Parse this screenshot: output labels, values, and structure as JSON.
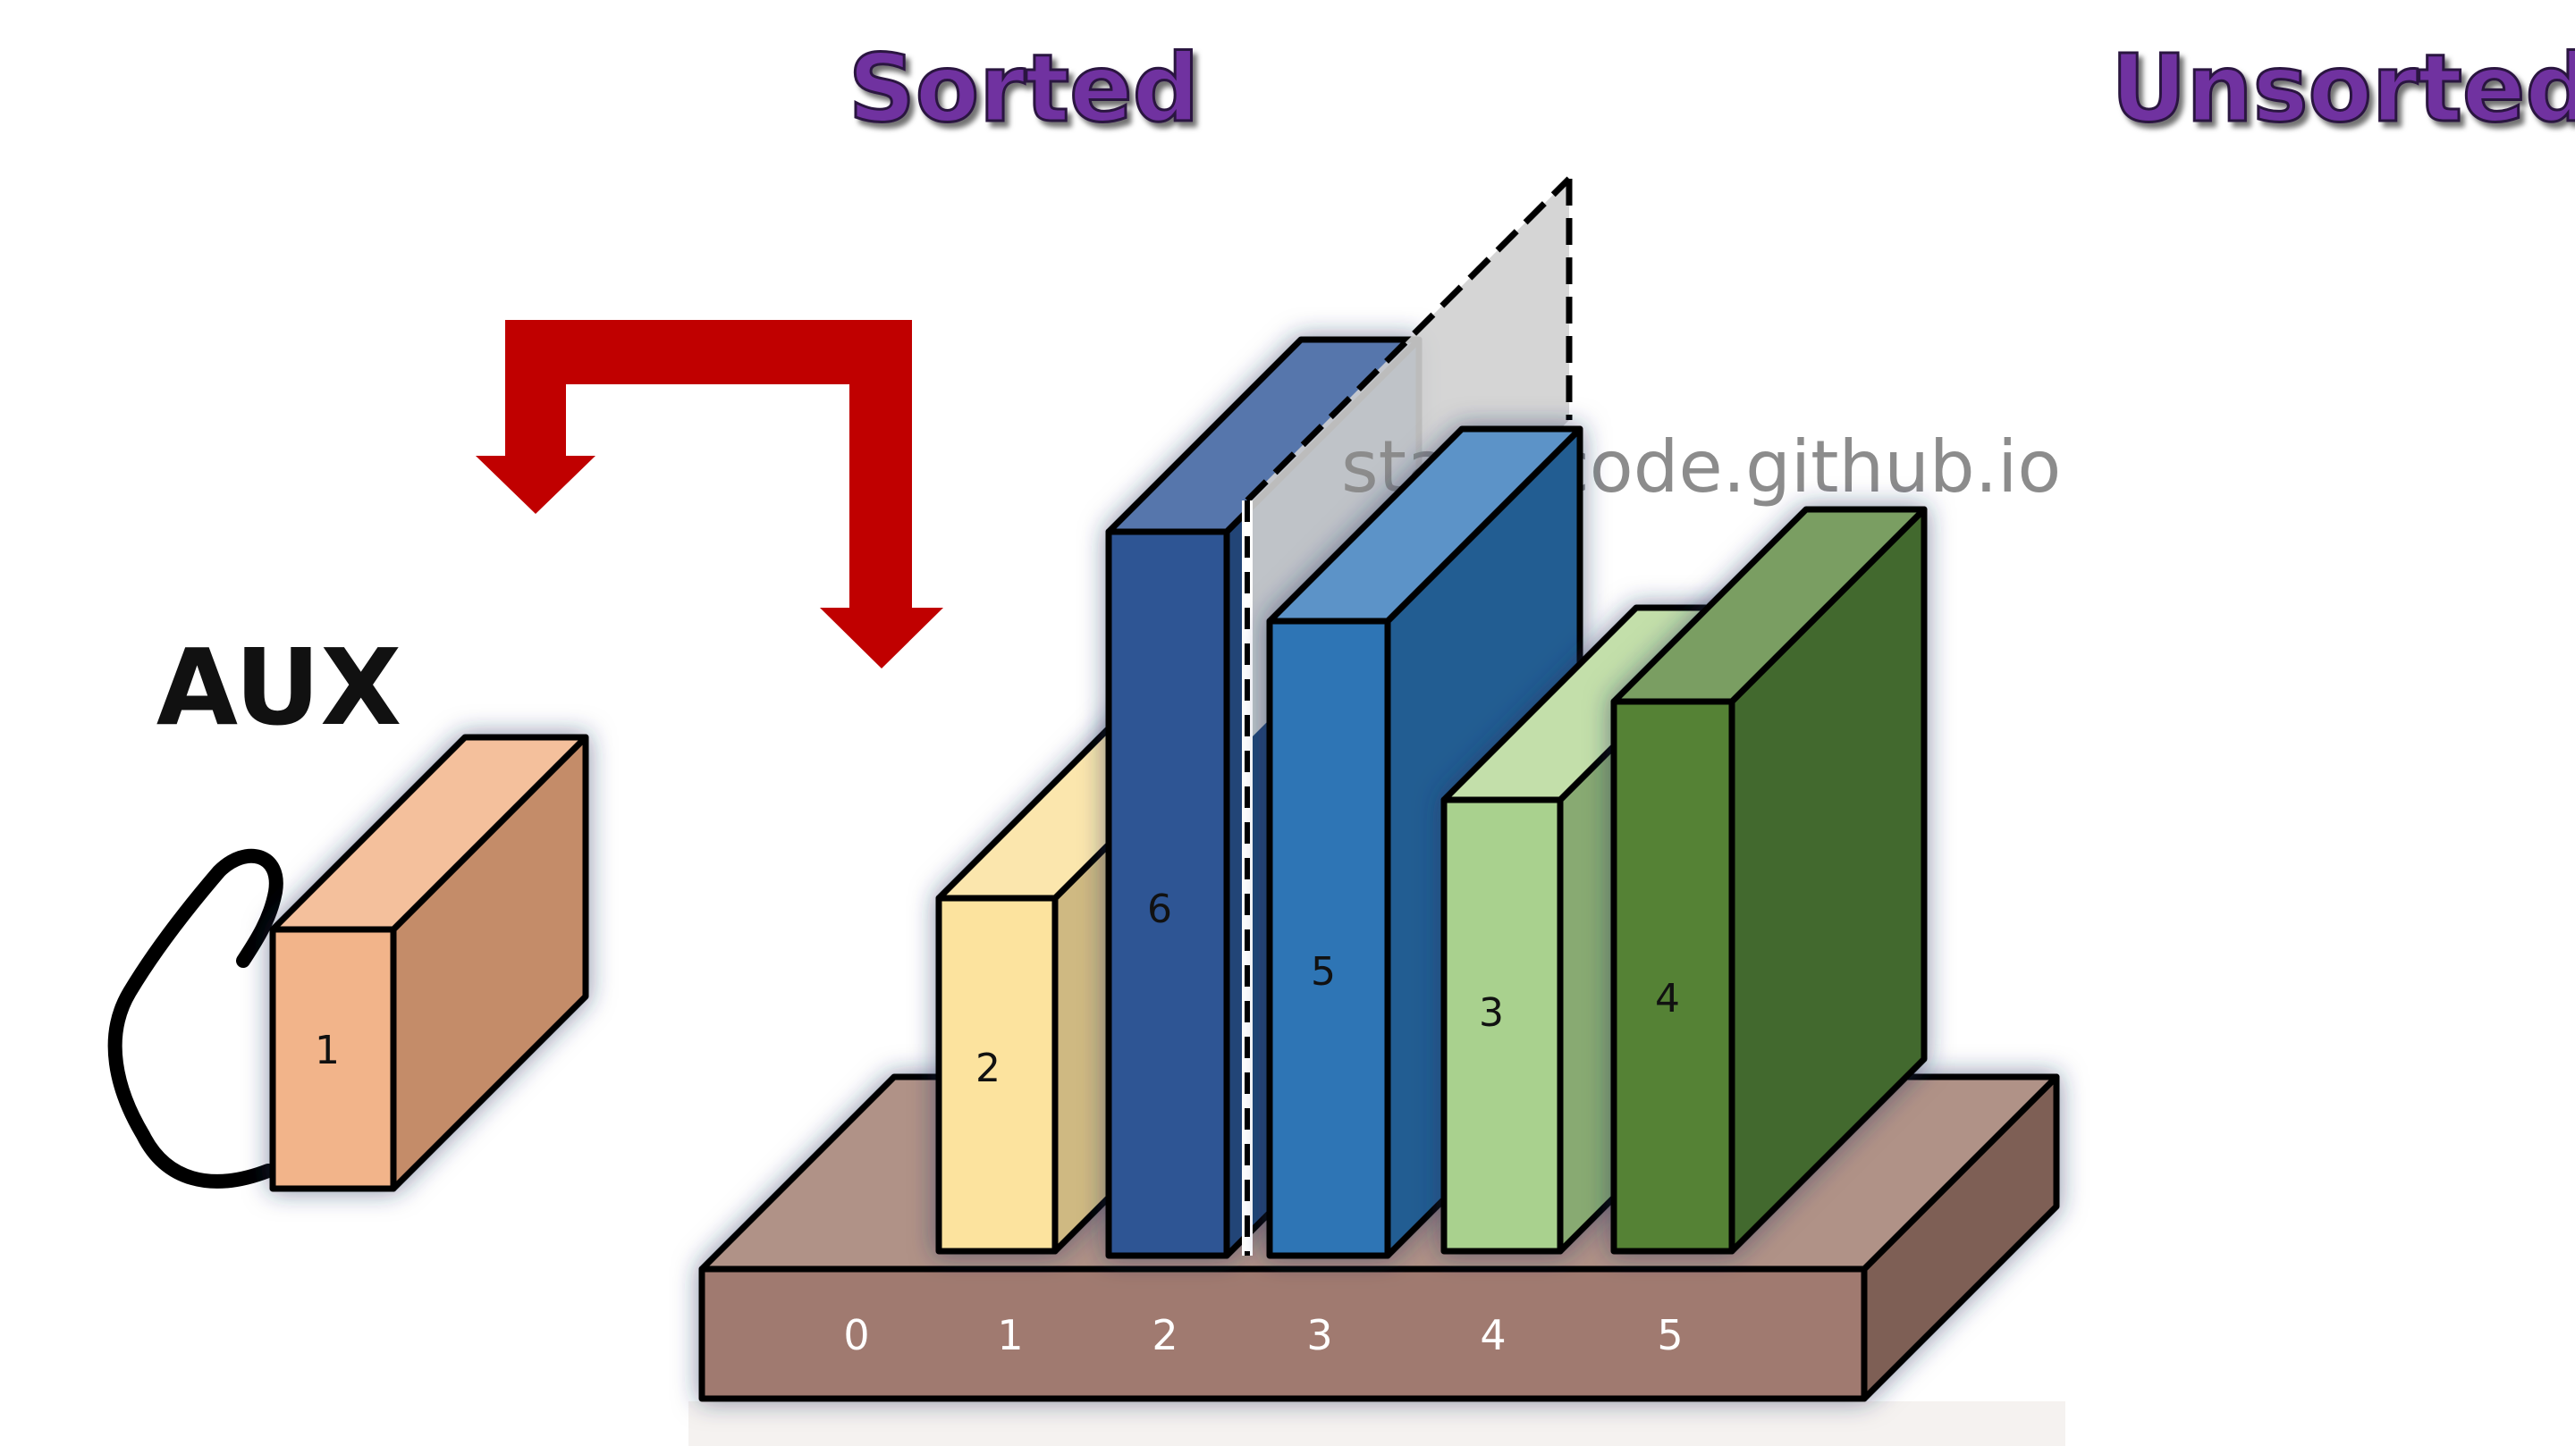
{
  "labels": {
    "sorted": "Sorted",
    "unsorted": "Unsorted",
    "aux": "AUX",
    "watermark": "starrycode.github.io"
  },
  "aux_block": {
    "value": "1",
    "color": "#f2b48a"
  },
  "array": {
    "indices": [
      "0",
      "1",
      "2",
      "3",
      "4",
      "5"
    ],
    "blocks": [
      {
        "value": "2",
        "color": "#fce39e"
      },
      {
        "value": "6",
        "color": "#2f5594"
      },
      {
        "value": "5",
        "color": "#2e74b5"
      },
      {
        "value": "3",
        "color": "#a9d18e"
      },
      {
        "value": "4",
        "color": "#548235"
      }
    ],
    "base_color": "#a07a70"
  },
  "colors": {
    "heading": "#7030a0",
    "arrow": "#c00000",
    "partition": "#d0d0d0",
    "watermark": "#8c8c8c"
  }
}
